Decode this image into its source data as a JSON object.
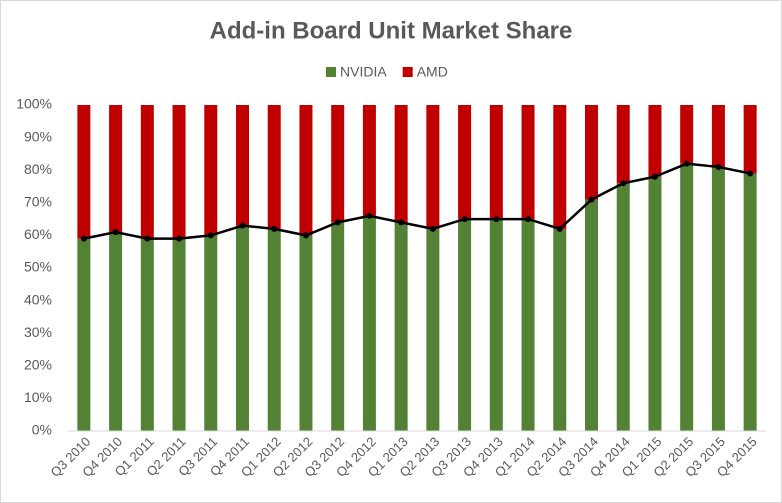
{
  "chart_data": {
    "type": "stacked_bar_line",
    "title": "Add-in Board Unit Market Share",
    "categories": [
      "Q3 2010",
      "Q4 2010",
      "Q1 2011",
      "Q2 2011",
      "Q3 2011",
      "Q4 2011",
      "Q1 2012",
      "Q2 2012",
      "Q3 2012",
      "Q4 2012",
      "Q1 2013",
      "Q2 2013",
      "Q3 2013",
      "Q4 2013",
      "Q1 2014",
      "Q2 2014",
      "Q3 2014",
      "Q4 2014",
      "Q1 2015",
      "Q2 2015",
      "Q3 2015",
      "Q4 2015"
    ],
    "series": [
      {
        "name": "NVIDIA",
        "color": "#548235",
        "values": [
          59,
          61,
          59,
          59,
          60,
          63,
          62,
          60,
          64,
          66,
          64,
          62,
          65,
          65,
          65,
          62,
          71,
          76,
          78,
          82,
          81,
          79
        ]
      },
      {
        "name": "AMD",
        "color": "#c00000",
        "values": [
          41,
          39,
          41,
          41,
          40,
          37,
          38,
          40,
          36,
          34,
          36,
          38,
          35,
          35,
          35,
          38,
          29,
          24,
          22,
          18,
          19,
          21
        ]
      }
    ],
    "line_color": "#000000",
    "ylim": [
      0,
      100
    ],
    "yticks": [
      {
        "value": 0,
        "label": "0%"
      },
      {
        "value": 10,
        "label": "10%"
      },
      {
        "value": 20,
        "label": "20%"
      },
      {
        "value": 30,
        "label": "30%"
      },
      {
        "value": 40,
        "label": "40%"
      },
      {
        "value": 50,
        "label": "50%"
      },
      {
        "value": 60,
        "label": "60%"
      },
      {
        "value": 70,
        "label": "70%"
      },
      {
        "value": 80,
        "label": "80%"
      },
      {
        "value": 90,
        "label": "90%"
      },
      {
        "value": 100,
        "label": "100%"
      }
    ],
    "grid": false,
    "legend": "top"
  }
}
